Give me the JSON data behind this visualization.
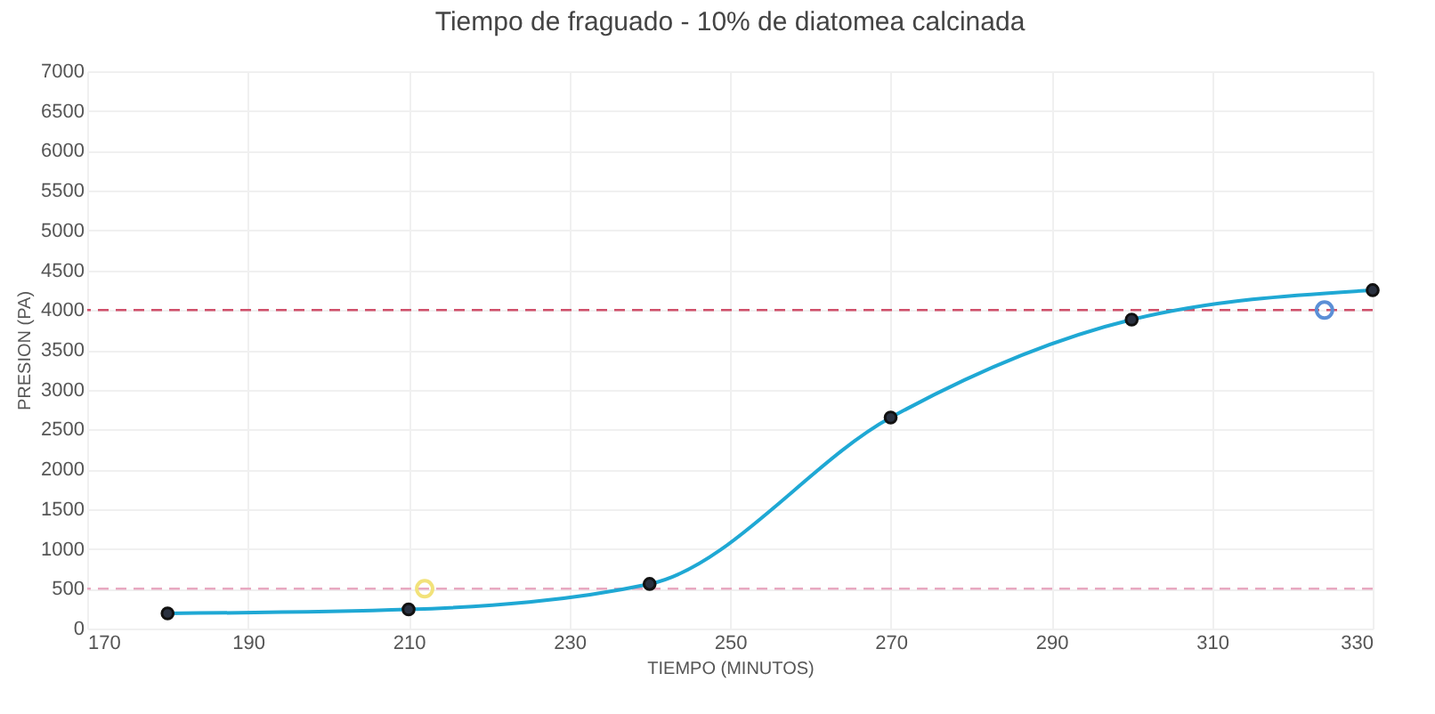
{
  "chart_data": {
    "type": "line",
    "title": "Tiempo de fraguado  - 10% de diatomea calcinada",
    "xlabel": "TIEMPO (MINUTOS)",
    "ylabel": "PRESION (PA)",
    "x": [
      180,
      210,
      240,
      270,
      300,
      330
    ],
    "series": [
      {
        "color": "#1fa8d4",
        "values": [
          190,
          240,
          560,
          2650,
          3880,
          4250
        ],
        "marker": "circle"
      },
      {
        "type": "scatter",
        "color": "#f2e27a",
        "x": [
          212
        ],
        "values": [
          500
        ]
      },
      {
        "type": "scatter",
        "color": "#5b8fd6",
        "x": [
          324
        ],
        "values": [
          4000
        ]
      }
    ],
    "xlim": [
      170,
      330
    ],
    "xticks": [
      170,
      190,
      210,
      230,
      250,
      270,
      290,
      310,
      330
    ],
    "ylim": [
      0,
      7000
    ],
    "yticks": [
      0,
      500,
      1000,
      1500,
      2000,
      2500,
      3000,
      3500,
      4000,
      4500,
      5000,
      5500,
      6000,
      6500,
      7000
    ],
    "ref_lines": [
      {
        "axis": "y",
        "value": 4000,
        "color": "#d0506a",
        "line_style": "dashed"
      },
      {
        "axis": "y",
        "value": 500,
        "color": "#e8a8c0",
        "line_style": "dashed"
      }
    ],
    "grid": true
  }
}
